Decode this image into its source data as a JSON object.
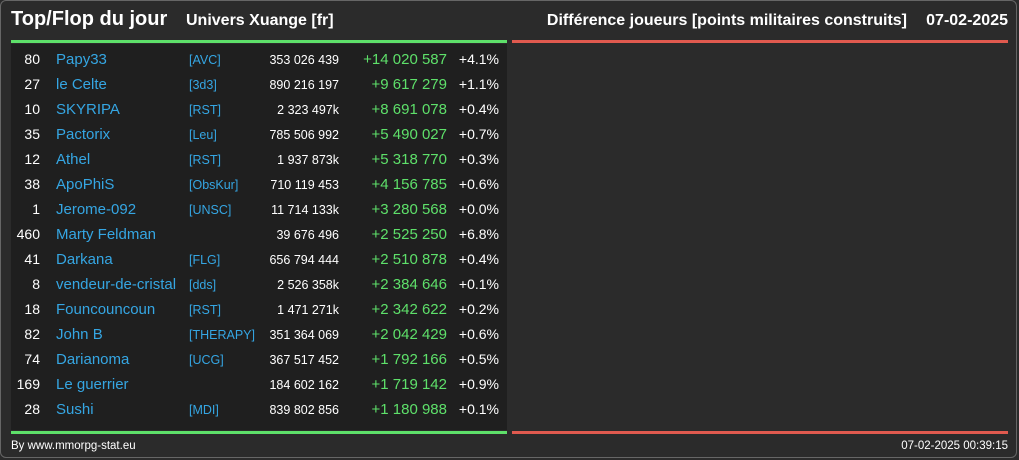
{
  "header": {
    "title": "Top/Flop du jour",
    "universe": "Univers Xuange [fr]",
    "metric": "Différence joueurs [points militaires construits]",
    "date": "07-02-2025"
  },
  "rows": [
    {
      "rank": "80",
      "name": "Papy33",
      "alliance": "[AVC]",
      "points": "353 026 439",
      "diff": "+14 020 587",
      "pct": "+4.1%"
    },
    {
      "rank": "27",
      "name": "le Celte",
      "alliance": "[3d3]",
      "points": "890 216 197",
      "diff": "+9 617 279",
      "pct": "+1.1%"
    },
    {
      "rank": "10",
      "name": "SKYRIPA",
      "alliance": "[RST]",
      "points": "2 323 497k",
      "diff": "+8 691 078",
      "pct": "+0.4%"
    },
    {
      "rank": "35",
      "name": "Pactorix",
      "alliance": "[Leu]",
      "points": "785 506 992",
      "diff": "+5 490 027",
      "pct": "+0.7%"
    },
    {
      "rank": "12",
      "name": "Athel",
      "alliance": "[RST]",
      "points": "1 937 873k",
      "diff": "+5 318 770",
      "pct": "+0.3%"
    },
    {
      "rank": "38",
      "name": "ApoPhiS",
      "alliance": "[ObsKur]",
      "points": "710 119 453",
      "diff": "+4 156 785",
      "pct": "+0.6%"
    },
    {
      "rank": "1",
      "name": "Jerome-092",
      "alliance": "[UNSC]",
      "points": "11 714 133k",
      "diff": "+3 280 568",
      "pct": "+0.0%"
    },
    {
      "rank": "460",
      "name": "Marty Feldman",
      "alliance": "",
      "points": "39 676 496",
      "diff": "+2 525 250",
      "pct": "+6.8%"
    },
    {
      "rank": "41",
      "name": "Darkana",
      "alliance": "[FLG]",
      "points": "656 794 444",
      "diff": "+2 510 878",
      "pct": "+0.4%"
    },
    {
      "rank": "8",
      "name": "vendeur-de-cristal",
      "alliance": "[dds]",
      "points": "2 526 358k",
      "diff": "+2 384 646",
      "pct": "+0.1%"
    },
    {
      "rank": "18",
      "name": "Founcouncoun",
      "alliance": "[RST]",
      "points": "1 471 271k",
      "diff": "+2 342 622",
      "pct": "+0.2%"
    },
    {
      "rank": "82",
      "name": "John B",
      "alliance": "[THERAPY]",
      "points": "351 364 069",
      "diff": "+2 042 429",
      "pct": "+0.6%"
    },
    {
      "rank": "74",
      "name": "Darianoma",
      "alliance": "[UCG]",
      "points": "367 517 452",
      "diff": "+1 792 166",
      "pct": "+0.5%"
    },
    {
      "rank": "169",
      "name": "Le guerrier",
      "alliance": "",
      "points": "184 602 162",
      "diff": "+1 719 142",
      "pct": "+0.9%"
    },
    {
      "rank": "28",
      "name": "Sushi",
      "alliance": "[MDI]",
      "points": "839 802 856",
      "diff": "+1 180 988",
      "pct": "+0.1%"
    }
  ],
  "footer": {
    "credit": "By www.mmorpg-stat.eu",
    "timestamp": "07-02-2025 00:39:15"
  }
}
